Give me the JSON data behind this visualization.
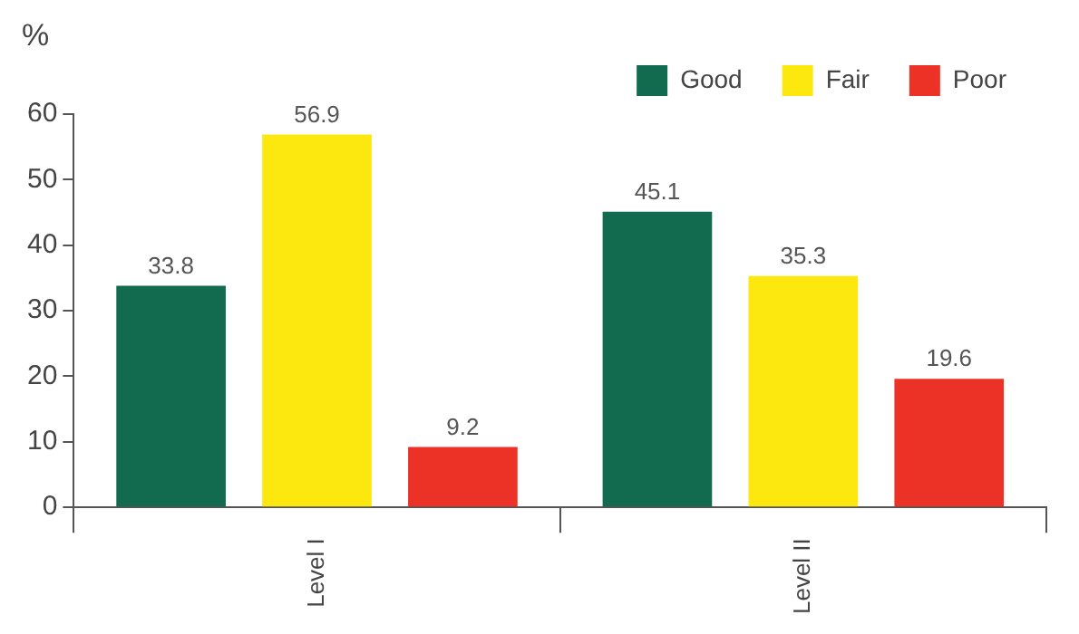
{
  "chart_data": {
    "type": "bar",
    "ylabel": "%",
    "categories": [
      "Level I",
      "Level II"
    ],
    "series": [
      {
        "name": "Good",
        "color": "#136b4f",
        "values": [
          33.8,
          45.1
        ]
      },
      {
        "name": "Fair",
        "color": "#fce80f",
        "values": [
          56.9,
          35.3
        ]
      },
      {
        "name": "Poor",
        "color": "#ec3126",
        "values": [
          9.2,
          19.6
        ]
      }
    ],
    "ylim": [
      0,
      60
    ],
    "yticks": [
      0,
      10,
      20,
      30,
      40,
      50,
      60
    ],
    "grid": false,
    "legend": "top right",
    "data_labels": true
  }
}
